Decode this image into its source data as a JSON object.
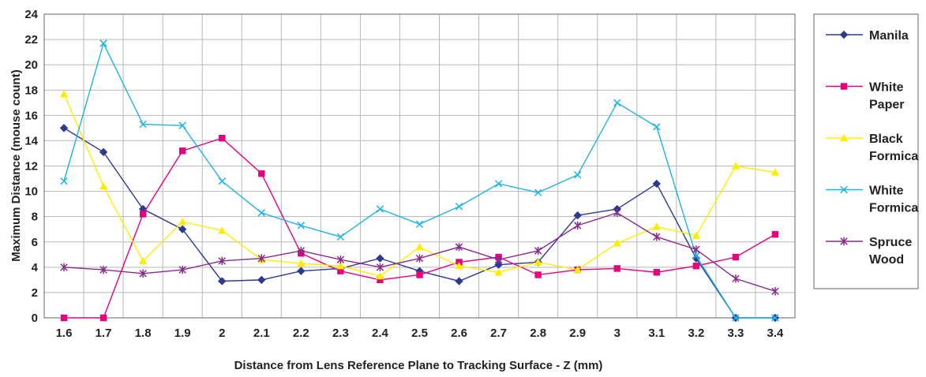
{
  "chart_data": {
    "type": "line",
    "title": "",
    "xlabel": "Distance from Lens Reference Plane to Tracking Surface - Z (mm)",
    "ylabel": "Maximum Distance (mouse count)",
    "ylim": [
      0,
      24
    ],
    "y_ticks": [
      "0",
      "2",
      "4",
      "6",
      "8",
      "10",
      "12",
      "14",
      "16",
      "18",
      "20",
      "22",
      "24"
    ],
    "categories": [
      "1.6",
      "1.7",
      "1.8",
      "1.9",
      "2",
      "2.1",
      "2.2",
      "2.3",
      "2.4",
      "2.5",
      "2.6",
      "2.7",
      "2.8",
      "2.9",
      "3",
      "3.1",
      "3.2",
      "3.3",
      "3.4"
    ],
    "grid": true,
    "legend_position": "right",
    "series": [
      {
        "name": "Manila",
        "legend_lines": [
          "Manila"
        ],
        "color": "#2b3990",
        "marker": "diamond",
        "values": [
          15.0,
          13.1,
          8.6,
          7.0,
          2.9,
          3.0,
          3.7,
          3.9,
          4.7,
          3.7,
          2.9,
          4.2,
          4.4,
          8.1,
          8.6,
          10.6,
          4.7,
          0,
          0
        ]
      },
      {
        "name": "White Paper",
        "legend_lines": [
          "White",
          "Paper"
        ],
        "color": "#e6007e",
        "marker": "square",
        "values": [
          0,
          0,
          8.2,
          13.2,
          14.2,
          11.4,
          5.1,
          3.7,
          3.0,
          3.4,
          4.4,
          4.8,
          3.4,
          3.8,
          3.9,
          3.6,
          4.1,
          4.8,
          6.6
        ]
      },
      {
        "name": "Black Formica",
        "legend_lines": [
          "Black",
          "Formica"
        ],
        "color": "#ffed00",
        "marker": "triangle",
        "values": [
          17.7,
          10.4,
          4.5,
          7.6,
          6.9,
          4.6,
          4.3,
          4.1,
          3.3,
          5.6,
          4.1,
          3.6,
          4.4,
          3.8,
          5.9,
          7.2,
          6.5,
          12.0,
          11.5
        ]
      },
      {
        "name": "White Formica",
        "legend_lines": [
          "White",
          "Formica"
        ],
        "color": "#1eb4e6",
        "marker": "x",
        "values": [
          10.8,
          21.7,
          15.3,
          15.2,
          10.8,
          8.3,
          7.3,
          6.4,
          8.6,
          7.4,
          8.8,
          10.6,
          9.9,
          11.3,
          17.0,
          15.1,
          4.9,
          0,
          0
        ]
      },
      {
        "name": "Spruce Wood",
        "legend_lines": [
          "Spruce",
          "Wood"
        ],
        "color": "#8b2a8e",
        "marker": "star",
        "values": [
          4.0,
          3.8,
          3.5,
          3.8,
          4.5,
          4.7,
          5.3,
          4.6,
          4.0,
          4.7,
          5.6,
          4.6,
          5.3,
          7.3,
          8.3,
          6.4,
          5.4,
          3.1,
          2.1
        ]
      }
    ]
  }
}
